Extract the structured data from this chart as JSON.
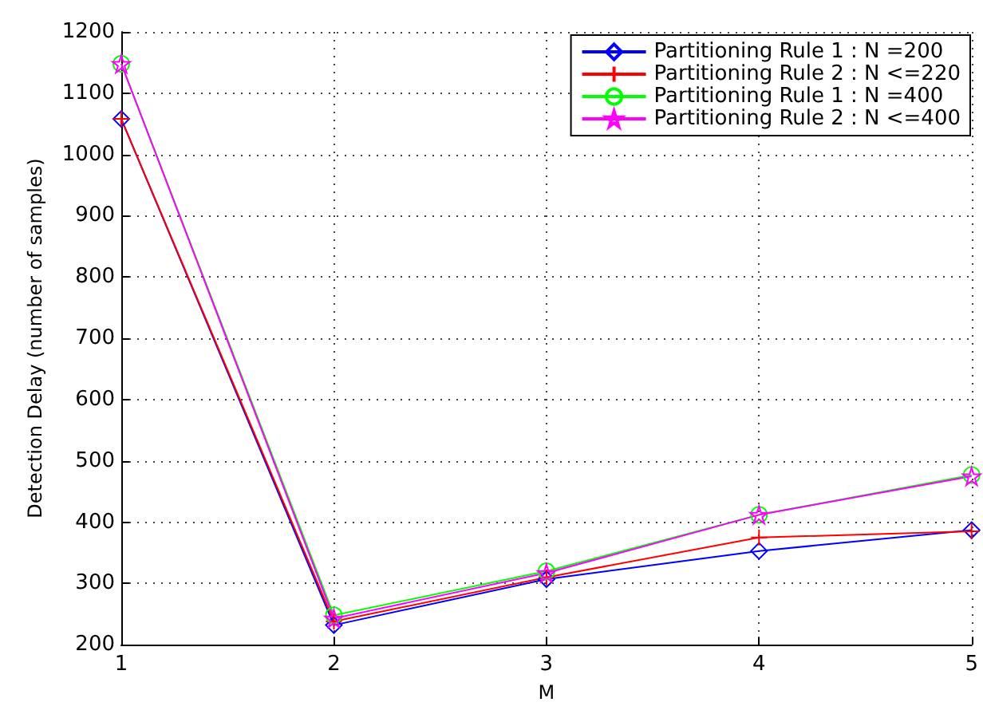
{
  "chart_data": {
    "type": "line",
    "xlabel": "M",
    "ylabel": "Detection Delay (number of samples)",
    "x": [
      1,
      2,
      3,
      4,
      5
    ],
    "xlim": [
      1,
      5
    ],
    "xticks": [
      1,
      2,
      3,
      4,
      5
    ],
    "ylim": [
      200,
      1200
    ],
    "yticks": [
      200,
      300,
      400,
      500,
      600,
      700,
      800,
      900,
      1000,
      1100,
      1200
    ],
    "grid": true,
    "legend": "top right",
    "line_style": "solid",
    "series": [
      {
        "name": "Partitioning Rule 1 : N =200",
        "color": "#0000ff",
        "marker": "diamond",
        "values": [
          1058,
          232,
          307,
          353,
          387
        ]
      },
      {
        "name": "Partitioning Rule 2 : N <=220",
        "color": "#ff0000",
        "marker": "cross",
        "values": [
          1058,
          238,
          310,
          375,
          385
        ]
      },
      {
        "name": "Partitioning Rule 1 : N =400",
        "color": "#00ff00",
        "marker": "circle",
        "values": [
          1148,
          248,
          320,
          412,
          477
        ]
      },
      {
        "name": "Partitioning Rule 2 : N <=400",
        "color": "#ff00ff",
        "marker": "star",
        "values": [
          1148,
          243,
          317,
          412,
          475
        ]
      }
    ]
  }
}
